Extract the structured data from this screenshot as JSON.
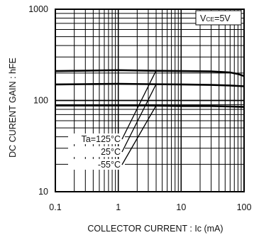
{
  "chart_data": {
    "type": "line",
    "xlabel": "COLLECTOR CURRENT : Ic (mA)",
    "ylabel": "DC CURENT GAIN : hFE",
    "x_scale": "log",
    "y_scale": "log",
    "xlim": [
      0.1,
      100
    ],
    "ylim": [
      10,
      1000
    ],
    "grid": true,
    "x_ticks": [
      {
        "value": 0.1,
        "label": "0.1"
      },
      {
        "value": 1,
        "label": "1"
      },
      {
        "value": 10,
        "label": "10"
      },
      {
        "value": 100,
        "label": "100"
      }
    ],
    "y_ticks": [
      {
        "value": 10,
        "label": "10"
      },
      {
        "value": 100,
        "label": "100"
      },
      {
        "value": 1000,
        "label": "1000"
      }
    ],
    "condition": {
      "main": "V",
      "sub": "CE",
      "tail": "=5V"
    },
    "series": [
      {
        "name": "Ta=125°C",
        "x": [
          0.1,
          0.3,
          1,
          3,
          10,
          30,
          60,
          80,
          100
        ],
        "y": [
          210,
          212,
          215,
          212,
          210,
          208,
          203,
          195,
          185
        ]
      },
      {
        "name": "25°C",
        "x": [
          0.1,
          0.3,
          1,
          3,
          10,
          30,
          60,
          100
        ],
        "y": [
          150,
          151,
          152,
          151,
          150,
          148,
          146,
          143
        ]
      },
      {
        "name": "-55°C",
        "x": [
          0.1,
          0.3,
          1,
          3,
          10,
          30,
          60,
          100
        ],
        "y": [
          88,
          88,
          88,
          88,
          87,
          87,
          86,
          85
        ]
      }
    ],
    "annotations": [
      {
        "text": "Ta=125°C",
        "pointer_x": 4,
        "pointer_y": 213
      },
      {
        "text": "25°C",
        "pointer_x": 4,
        "pointer_y": 151
      },
      {
        "text": "-55°C",
        "pointer_x": 4,
        "pointer_y": 88
      }
    ]
  }
}
